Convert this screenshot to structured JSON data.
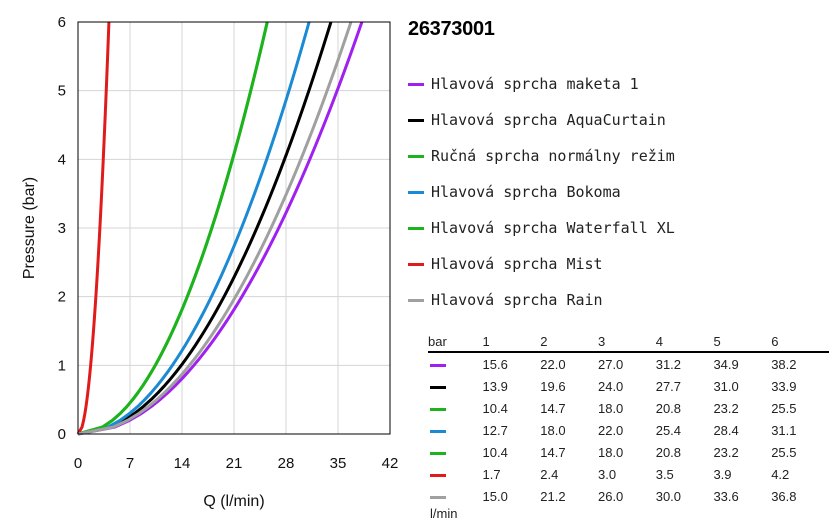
{
  "title": "26373001",
  "chart_data": {
    "type": "line",
    "xlabel": "Q (l/min)",
    "ylabel": "Pressure (bar)",
    "xlim": [
      0,
      42
    ],
    "ylim": [
      0,
      6
    ],
    "xticks": [
      "0",
      "7",
      "14",
      "21",
      "28",
      "35",
      "42"
    ],
    "yticks": [
      "0",
      "1",
      "2",
      "3",
      "4",
      "5",
      "6"
    ],
    "grid": true,
    "legend_position": "right",
    "pressure_points": [
      1,
      2,
      3,
      4,
      5,
      6
    ],
    "series": [
      {
        "name": "Hlavová sprcha maketa 1",
        "color": "#a020f0",
        "values": [
          15.6,
          22.0,
          27.0,
          31.2,
          34.9,
          38.2
        ]
      },
      {
        "name": "Hlavová sprcha AquaCurtain",
        "color": "#000000",
        "values": [
          13.9,
          19.6,
          24.0,
          27.7,
          31.0,
          33.9
        ]
      },
      {
        "name": "Ručná sprcha normálny režim",
        "color": "#1db31d",
        "values": [
          10.4,
          14.7,
          18.0,
          20.8,
          23.2,
          25.5
        ]
      },
      {
        "name": "Hlavová sprcha Bokoma",
        "color": "#1a8ad4",
        "values": [
          12.7,
          18.0,
          22.0,
          25.4,
          28.4,
          31.1
        ]
      },
      {
        "name": "Hlavová sprcha Waterfall XL",
        "color": "#1db31d",
        "values": [
          10.4,
          14.7,
          18.0,
          20.8,
          23.2,
          25.5
        ]
      },
      {
        "name": "Hlavová sprcha Mist",
        "color": "#e01b1b",
        "values": [
          1.7,
          2.4,
          3.0,
          3.5,
          3.9,
          4.2
        ]
      },
      {
        "name": "Hlavová sprcha Rain",
        "color": "#a0a0a0",
        "values": [
          15.0,
          21.2,
          26.0,
          30.0,
          33.6,
          36.8
        ]
      }
    ]
  },
  "table": {
    "header_label": "bar",
    "unit_label": "l/min",
    "columns": [
      "1",
      "2",
      "3",
      "4",
      "5",
      "6"
    ],
    "rows": [
      {
        "color": "#a020f0",
        "values": [
          "15.6",
          "22.0",
          "27.0",
          "31.2",
          "34.9",
          "38.2"
        ]
      },
      {
        "color": "#000000",
        "values": [
          "13.9",
          "19.6",
          "24.0",
          "27.7",
          "31.0",
          "33.9"
        ]
      },
      {
        "color": "#1db31d",
        "values": [
          "10.4",
          "14.7",
          "18.0",
          "20.8",
          "23.2",
          "25.5"
        ]
      },
      {
        "color": "#1a8ad4",
        "values": [
          "12.7",
          "18.0",
          "22.0",
          "25.4",
          "28.4",
          "31.1"
        ]
      },
      {
        "color": "#1db31d",
        "values": [
          "10.4",
          "14.7",
          "18.0",
          "20.8",
          "23.2",
          "25.5"
        ]
      },
      {
        "color": "#e01b1b",
        "values": [
          "1.7",
          "2.4",
          "3.0",
          "3.5",
          "3.9",
          "4.2"
        ]
      },
      {
        "color": "#a0a0a0",
        "values": [
          "15.0",
          "21.2",
          "26.0",
          "30.0",
          "33.6",
          "36.8"
        ]
      }
    ]
  }
}
